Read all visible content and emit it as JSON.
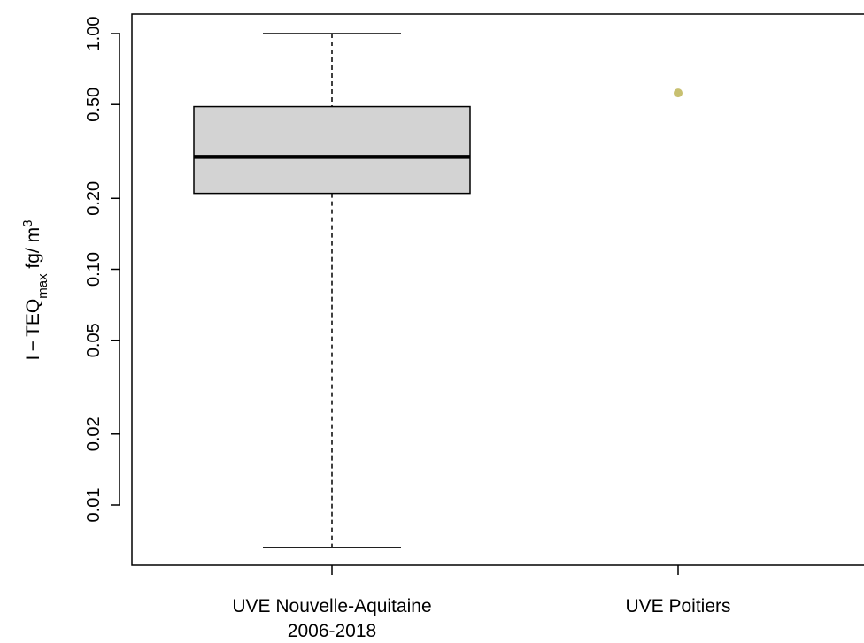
{
  "chart_data": {
    "type": "box",
    "title": "",
    "xlabel": "",
    "ylabel": {
      "base": "I − TEQ",
      "subscript": "max",
      "unit": " fg/ m",
      "superscript": "3"
    },
    "y_scale": "log",
    "ylim": [
      0.0055,
      1.3
    ],
    "y_ticks": [
      {
        "value": 0.01,
        "label": "0.01"
      },
      {
        "value": 0.02,
        "label": "0.02"
      },
      {
        "value": 0.05,
        "label": "0.05"
      },
      {
        "value": 0.1,
        "label": "0.10"
      },
      {
        "value": 0.2,
        "label": "0.20"
      },
      {
        "value": 0.5,
        "label": "0.50"
      },
      {
        "value": 1.0,
        "label": "1.00"
      }
    ],
    "categories": [
      {
        "label_lines": [
          "UVE Nouvelle-Aquitaine",
          "2006-2018"
        ]
      },
      {
        "label_lines": [
          "UVE Poitiers"
        ]
      }
    ],
    "box": {
      "category_index": 0,
      "min": 0.0066,
      "q1": 0.21,
      "median": 0.3,
      "q3": 0.49,
      "max": 1.0,
      "fill": "#d3d3d3"
    },
    "points": [
      {
        "category_index": 1,
        "value": 0.56,
        "color": "#c8c070"
      }
    ],
    "grid": false,
    "legend": "none"
  }
}
